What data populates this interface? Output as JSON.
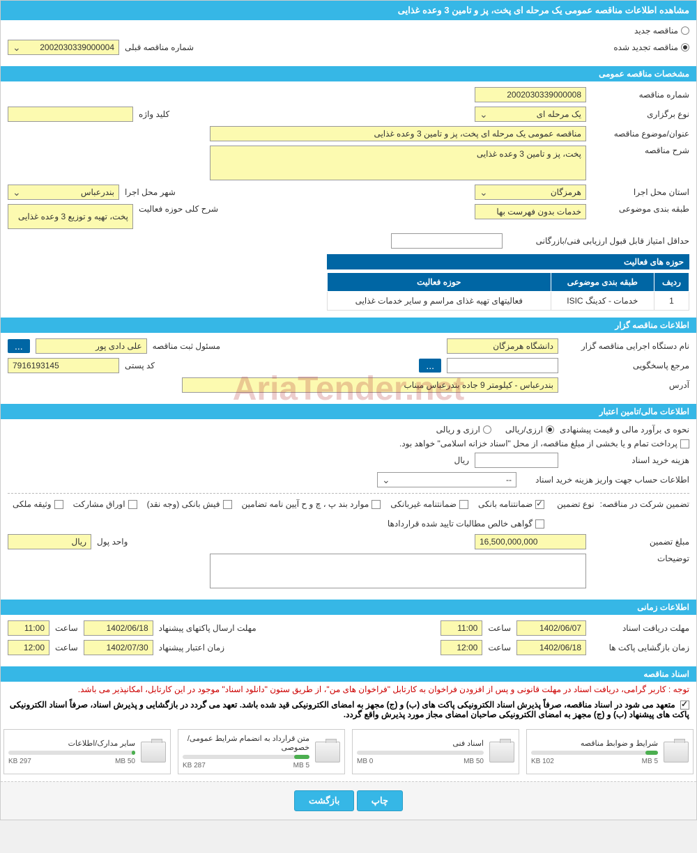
{
  "title": "مشاهده اطلاعات مناقصه عمومی یک مرحله ای پخت، پز و تامین 3 وعده غذایی",
  "top": {
    "new_tender": "مناقصه جدید",
    "renewed_tender": "مناقصه تجدید شده",
    "prev_number_label": "شماره مناقصه قبلی",
    "prev_number": "2002030339000004"
  },
  "sec_general": {
    "header": "مشخصات مناقصه عمومی",
    "tender_num_label": "شماره مناقصه",
    "tender_num": "2002030339000008",
    "type_label": "نوع برگزاری",
    "type": "یک مرحله ای",
    "keyword_label": "کلید واژه",
    "keyword": "",
    "title_label": "عنوان/موضوع مناقصه",
    "title_val": "مناقصه عمومی یک مرحله ای پخت، پز و تامین 3 وعده غذایی",
    "desc_label": "شرح مناقصه",
    "desc_val": "پخت، پز و تامین 3 وعده غذایی",
    "province_label": "استان محل اجرا",
    "province": "هرمزگان",
    "city_label": "شهر محل اجرا",
    "city": "بندرعباس",
    "category_label": "طبقه بندی موضوعی",
    "category": "خدمات بدون فهرست بها",
    "scope_label": "شرح کلی حوزه فعالیت",
    "scope": "پخت، تهیه و توزیع 3 وعده غذایی",
    "score_label": "حداقل امتیاز قابل قبول ارزیابی فنی/بازرگانی",
    "score": ""
  },
  "activity_table": {
    "header": "حوزه های فعالیت",
    "col_row": "ردیف",
    "col_cat": "طبقه بندی موضوعی",
    "col_scope": "حوزه فعالیت",
    "rows": [
      {
        "n": "1",
        "cat": "خدمات - کدینگ ISIC",
        "scope": "فعالیتهای تهیه غذای مراسم و سایر خدمات غذایی"
      }
    ]
  },
  "sec_org": {
    "header": "اطلاعات مناقصه گزار",
    "org_label": "نام دستگاه اجرایی مناقصه گزار",
    "org": "دانشگاه هرمزگان",
    "reg_label": "مسئول ثبت مناقصه",
    "reg": "علی  دادی پور",
    "ref_label": "مرجع پاسخگویی",
    "ref": "",
    "postal_label": "کد پستی",
    "postal": "7916193145",
    "addr_label": "آدرس",
    "addr": "بندرعباس - کیلومتر 9 جاده بندرعباس میناب",
    "more": "..."
  },
  "sec_finance": {
    "header": "اطلاعات مالی/تامین اعتبار",
    "method_label": "نحوه ی برآورد مالی و قیمت پیشنهادی",
    "opt1": "ارزی/ریالی",
    "opt2": "ارزی و ریالی",
    "treasury_note": "پرداخت تمام و یا بخشی از مبلغ مناقصه، از محل \"اسناد خزانه اسلامی\" خواهد بود.",
    "doc_cost_label": "هزینه خرید اسناد",
    "rial": "ریال",
    "account_label": "اطلاعات حساب جهت واریز هزینه خرید اسناد",
    "account_val": "--",
    "guarantee_label": "تضمین شرکت در مناقصه:",
    "guarantee_type_label": "نوع تضمین",
    "g1": "ضمانتنامه بانکی",
    "g2": "ضمانتنامه غیربانکی",
    "g3": "موارد بند پ ، چ و ح آیین نامه تضامین",
    "g4": "فیش بانکی (وجه نقد)",
    "g5": "اوراق مشارکت",
    "g6": "وثیقه ملکی",
    "g7": "گواهی خالص مطالبات تایید شده قراردادها",
    "amount_label": "مبلغ تضمین",
    "amount": "16,500,000,000",
    "currency_label": "واحد پول",
    "currency": "ریال",
    "remarks_label": "توضیحات"
  },
  "sec_time": {
    "header": "اطلاعات زمانی",
    "doc_deadline_label": "مهلت دریافت اسناد",
    "doc_deadline": "1402/06/07",
    "t1": "11:00",
    "open_label": "زمان بازگشایی پاکت ها",
    "open_date": "1402/06/18",
    "t2": "12:00",
    "send_label": "مهلت ارسال پاکتهای پیشنهاد",
    "send_date": "1402/06/18",
    "t3": "11:00",
    "validity_label": "زمان اعتبار پیشنهاد",
    "validity_date": "1402/07/30",
    "t4": "12:00",
    "time_label": "ساعت"
  },
  "sec_docs": {
    "header": "اسناد مناقصه",
    "notice_red": "توجه : کاربر گرامی، دریافت اسناد در مهلت قانونی و پس از افزودن فراخوان به کارتابل \"فراخوان های من\"، از طریق ستون \"دانلود اسناد\" موجود در این کارتابل، امکانپذیر می باشد.",
    "notice_black": "متعهد می شود در اسناد مناقصه، صرفاً پذیرش اسناد الکترونیکی پاکت های (ب) و (ج) مجهز به امضای الکترونیکی قید شده باشد. تعهد می گردد در بازگشایی و پذیرش اسناد، صرفاً اسناد الکترونیکی پاکت های پیشنهاد (ب) و (ج) مجهز به امضای الکترونیکی صاحبان امضای مجاز مورد پذیرش واقع گردد.",
    "files": [
      {
        "name": "شرایط و ضوابط مناقصه",
        "used": "102 KB",
        "max": "5 MB",
        "pct": 10
      },
      {
        "name": "اسناد فنی",
        "used": "0 MB",
        "max": "50 MB",
        "pct": 0
      },
      {
        "name": "متن قرارداد به انضمام شرایط عمومی/خصوصی",
        "used": "287 KB",
        "max": "5 MB",
        "pct": 12
      },
      {
        "name": "سایر مدارک/اطلاعات",
        "used": "297 KB",
        "max": "50 MB",
        "pct": 3
      }
    ]
  },
  "buttons": {
    "print": "چاپ",
    "back": "بازگشت"
  },
  "watermark": "AriaTender.net"
}
